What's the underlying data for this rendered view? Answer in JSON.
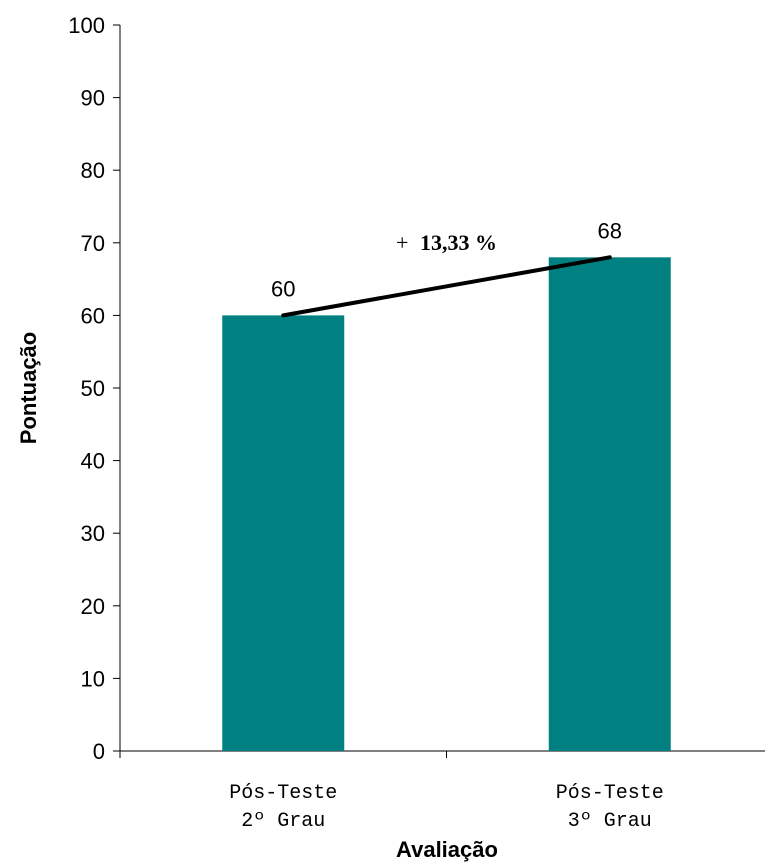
{
  "chart_data": {
    "type": "bar",
    "categories": [
      [
        "Pós-Teste",
        "2º Grau"
      ],
      [
        "Pós-Teste",
        "3º Grau"
      ]
    ],
    "values": [
      60,
      68
    ],
    "data_labels": [
      "60",
      "68"
    ],
    "xlabel": "Avaliação",
    "ylabel": "Pontuação",
    "ylim": [
      0,
      100
    ],
    "yticks": [
      0,
      10,
      20,
      30,
      40,
      50,
      60,
      70,
      80,
      90,
      100
    ],
    "bar_color": "#008080",
    "annotation": {
      "sign": "+",
      "value": "13,33 %",
      "from_category": 0,
      "to_category": 1
    },
    "grid": false,
    "legend": "none"
  }
}
